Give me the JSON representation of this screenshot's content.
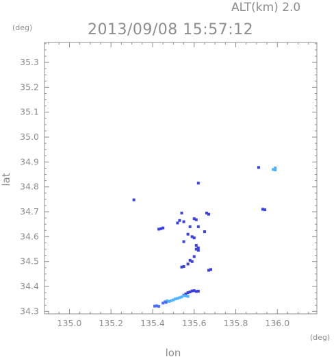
{
  "header": {
    "altitude_label": "ALT(km)  2.0",
    "timestamp": "2013/09/08 15:57:12",
    "y_unit": "(deg)",
    "x_unit": "(deg)"
  },
  "colors": {
    "frame": "#8c8c8c",
    "text": "#8c8c8c",
    "echo_dark": "#3a3fe0",
    "echo_mid": "#4a6cff",
    "echo_light": "#4db2ff"
  },
  "chart_data": {
    "type": "scatter",
    "xlabel": "lon",
    "ylabel": "lat",
    "xlim": [
      134.88,
      136.19
    ],
    "ylim": [
      34.29,
      35.38
    ],
    "xticks": [
      "135.0",
      "135.2",
      "135.4",
      "135.6",
      "135.8",
      "136.0"
    ],
    "yticks": [
      "34.3",
      "34.4",
      "34.5",
      "34.6",
      "34.7",
      "34.8",
      "34.9",
      "35.0",
      "35.1",
      "35.2",
      "35.3"
    ],
    "grid": false,
    "series": [
      {
        "color": "#3a3fe0",
        "points": [
          [
            135.31,
            34.748
          ],
          [
            135.44,
            34.632
          ],
          [
            135.45,
            34.635
          ],
          [
            135.43,
            34.63
          ],
          [
            135.54,
            34.695
          ],
          [
            135.53,
            34.665
          ],
          [
            135.55,
            34.66
          ],
          [
            135.52,
            34.655
          ],
          [
            135.61,
            34.668
          ],
          [
            135.6,
            34.672
          ],
          [
            135.62,
            34.64
          ],
          [
            135.58,
            34.64
          ],
          [
            135.62,
            34.815
          ],
          [
            135.66,
            34.695
          ],
          [
            135.67,
            34.69
          ],
          [
            135.59,
            34.6
          ],
          [
            135.6,
            34.595
          ],
          [
            135.57,
            34.61
          ],
          [
            135.61,
            34.565
          ],
          [
            135.62,
            34.555
          ],
          [
            135.61,
            34.55
          ],
          [
            135.62,
            34.545
          ],
          [
            135.55,
            34.58
          ],
          [
            135.6,
            34.52
          ],
          [
            135.58,
            34.505
          ],
          [
            135.59,
            34.5
          ],
          [
            135.57,
            34.49
          ],
          [
            135.55,
            34.48
          ],
          [
            135.54,
            34.478
          ],
          [
            135.67,
            34.465
          ],
          [
            135.68,
            34.468
          ],
          [
            135.93,
            34.71
          ],
          [
            135.94,
            34.708
          ],
          [
            135.91,
            34.878
          ],
          [
            135.65,
            34.62
          ],
          [
            135.59,
            34.382
          ],
          [
            135.6,
            34.383
          ],
          [
            135.61,
            34.38
          ],
          [
            135.62,
            34.381
          ],
          [
            135.58,
            34.378
          ],
          [
            135.57,
            34.375
          ],
          [
            135.56,
            34.37
          ],
          [
            135.55,
            34.365
          ]
        ]
      },
      {
        "color": "#4db2ff",
        "points": [
          [
            135.99,
            34.876
          ],
          [
            135.98,
            34.87
          ],
          [
            135.99,
            34.868
          ],
          [
            135.55,
            34.363
          ],
          [
            135.54,
            34.358
          ],
          [
            135.53,
            34.355
          ],
          [
            135.52,
            34.352
          ],
          [
            135.51,
            34.35
          ],
          [
            135.5,
            34.346
          ],
          [
            135.49,
            34.343
          ],
          [
            135.48,
            34.34
          ],
          [
            135.47,
            34.342
          ],
          [
            135.56,
            34.362
          ],
          [
            135.57,
            34.36
          ]
        ]
      },
      {
        "color": "#4a6cff",
        "points": [
          [
            135.42,
            34.322
          ],
          [
            135.43,
            34.32
          ],
          [
            135.41,
            34.321
          ],
          [
            135.46,
            34.338
          ],
          [
            135.465,
            34.336
          ],
          [
            135.45,
            34.333
          ]
        ]
      }
    ]
  }
}
